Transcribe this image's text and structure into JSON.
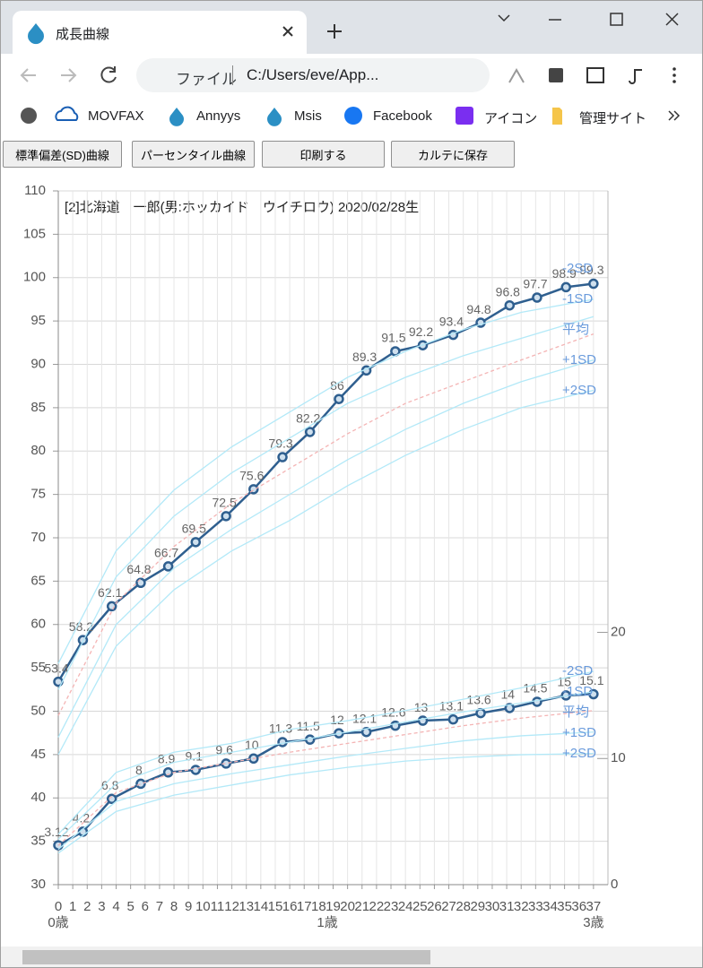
{
  "browser": {
    "tab_title": "成長曲線",
    "address_prefix": "ファイル",
    "address": "C:/Users/eve/App...",
    "bookmarks": [
      "MOVFAX",
      "Annyys",
      "Msis",
      "Facebook",
      "アイコン",
      "管理サイト"
    ]
  },
  "buttons": [
    "標準偏差(SD)曲線",
    "パーセンタイル曲線",
    "印刷する",
    "カルテに保存"
  ],
  "chart_data": {
    "type": "line",
    "title": "[2]北海道　一郎(男:ホッカイド　ウイチロウ) 2020/02/28生",
    "xlim": [
      0,
      38
    ],
    "xticks": [
      0,
      1,
      2,
      3,
      4,
      5,
      6,
      7,
      8,
      9,
      10,
      11,
      12,
      13,
      14,
      15,
      16,
      17,
      18,
      19,
      20,
      21,
      22,
      23,
      24,
      25,
      26,
      27,
      28,
      29,
      30,
      31,
      32,
      33,
      34,
      35,
      36,
      37
    ],
    "age_labels": [
      {
        "value": 0,
        "label": "0歳"
      },
      {
        "value": 18.6,
        "label": "1歳"
      },
      {
        "value": 37,
        "label": "3歳"
      }
    ],
    "ylim": [
      30,
      110
    ],
    "yticks": [
      30,
      35,
      40,
      45,
      50,
      55,
      60,
      65,
      70,
      75,
      80,
      85,
      90,
      95,
      100,
      105,
      110
    ],
    "y2lim": [
      0,
      55
    ],
    "y2ticks": [
      0,
      10,
      20
    ],
    "grid": true,
    "series": [
      {
        "color": "#2f5f8f",
        "markers": true,
        "x": [
          0,
          1.7,
          3.7,
          5.7,
          7.6,
          9.5,
          11.6,
          13.5,
          15.5,
          17.4,
          19.4,
          21.3,
          23.3,
          25.2,
          27.3,
          29.2,
          31.2,
          33.1,
          35.1,
          37
        ],
        "values": [
          53.4,
          58.2,
          62.1,
          64.8,
          66.7,
          69.5,
          72.5,
          75.6,
          79.3,
          82.2,
          86,
          89.3,
          91.5,
          92.2,
          93.4,
          94.8,
          96.8,
          97.7,
          98.9,
          99.3
        ]
      },
      {
        "color": "#2f5f8f",
        "markers": true,
        "axis": "y2",
        "x": [
          0,
          1.7,
          3.7,
          5.7,
          7.6,
          9.5,
          11.6,
          13.5,
          15.5,
          17.4,
          19.4,
          21.3,
          23.3,
          25.2,
          27.3,
          29.2,
          31.2,
          33.1,
          35.1,
          37
        ],
        "values": [
          3.12,
          4.2,
          6.8,
          8,
          8.9,
          9.1,
          9.6,
          10,
          11.3,
          11.5,
          12,
          12.1,
          12.6,
          13,
          13.1,
          13.6,
          14,
          14.5,
          15,
          15.1
        ]
      },
      {
        "name": "-2SD",
        "color": "#b3e9f8",
        "x": [
          0,
          4,
          8,
          12,
          16,
          20,
          24,
          28,
          32,
          37
        ],
        "values": [
          55.5,
          68.5,
          75.5,
          80.5,
          84.5,
          88.5,
          91.5,
          94,
          96,
          97.5
        ]
      },
      {
        "name": "-1SD",
        "color": "#b3e9f8",
        "x": [
          0,
          4,
          8,
          12,
          16,
          20,
          24,
          28,
          32,
          37
        ],
        "values": [
          52.5,
          65.5,
          72.5,
          77.5,
          81.5,
          85.5,
          88.5,
          91,
          93,
          95.5
        ]
      },
      {
        "name": "平均",
        "color": "#f4b4b4",
        "dashed": true,
        "x": [
          0,
          4,
          8,
          12,
          16,
          20,
          24,
          28,
          32,
          37
        ],
        "values": [
          49.5,
          62.5,
          69,
          74,
          78,
          82,
          85.5,
          88,
          90.5,
          93.5
        ]
      },
      {
        "name": "+1SD",
        "color": "#b3e9f8",
        "x": [
          0,
          4,
          8,
          12,
          16,
          20,
          24,
          28,
          32,
          37
        ],
        "values": [
          47,
          60,
          66.5,
          71,
          75,
          79,
          82.5,
          85.5,
          88,
          90.5
        ]
      },
      {
        "name": "+2SD",
        "color": "#b3e9f8",
        "x": [
          0,
          4,
          8,
          12,
          16,
          20,
          24,
          28,
          32,
          37
        ],
        "values": [
          45,
          57.5,
          64,
          68.5,
          72,
          76,
          79.5,
          82.5,
          85,
          87
        ]
      },
      {
        "name": "-2SD",
        "color": "#b3e9f8",
        "axis": "y2",
        "x": [
          0,
          4,
          8,
          12,
          16,
          20,
          24,
          28,
          32,
          37
        ],
        "values": [
          4,
          8.9,
          10.5,
          11.2,
          12.3,
          13,
          13.8,
          14.7,
          15.6,
          16.9
        ]
      },
      {
        "name": "-1SD",
        "color": "#b3e9f8",
        "axis": "y2",
        "x": [
          0,
          4,
          8,
          12,
          16,
          20,
          24,
          28,
          32,
          37
        ],
        "values": [
          3.6,
          8,
          9.7,
          10.5,
          11.3,
          12.1,
          12.9,
          13.7,
          14.4,
          15.3
        ]
      },
      {
        "name": "平均",
        "color": "#f4b4b4",
        "dashed": true,
        "axis": "y2",
        "x": [
          0,
          4,
          8,
          12,
          16,
          20,
          24,
          28,
          32,
          37
        ],
        "values": [
          3.1,
          7.3,
          8.9,
          9.7,
          10.5,
          11.2,
          11.9,
          12.6,
          13.2,
          13.8
        ]
      },
      {
        "name": "+1SD",
        "color": "#b3e9f8",
        "axis": "y2",
        "x": [
          0,
          4,
          8,
          12,
          16,
          20,
          24,
          28,
          32,
          37
        ],
        "values": [
          2.8,
          6.6,
          8,
          8.8,
          9.5,
          10.2,
          10.8,
          11.4,
          11.8,
          12.1
        ]
      },
      {
        "name": "+2SD",
        "color": "#b3e9f8",
        "axis": "y2",
        "x": [
          0,
          4,
          8,
          12,
          16,
          20,
          24,
          28,
          32,
          37
        ],
        "values": [
          2.5,
          5.8,
          7.1,
          7.9,
          8.7,
          9.3,
          9.8,
          10.1,
          10.3,
          10.4
        ]
      }
    ]
  }
}
